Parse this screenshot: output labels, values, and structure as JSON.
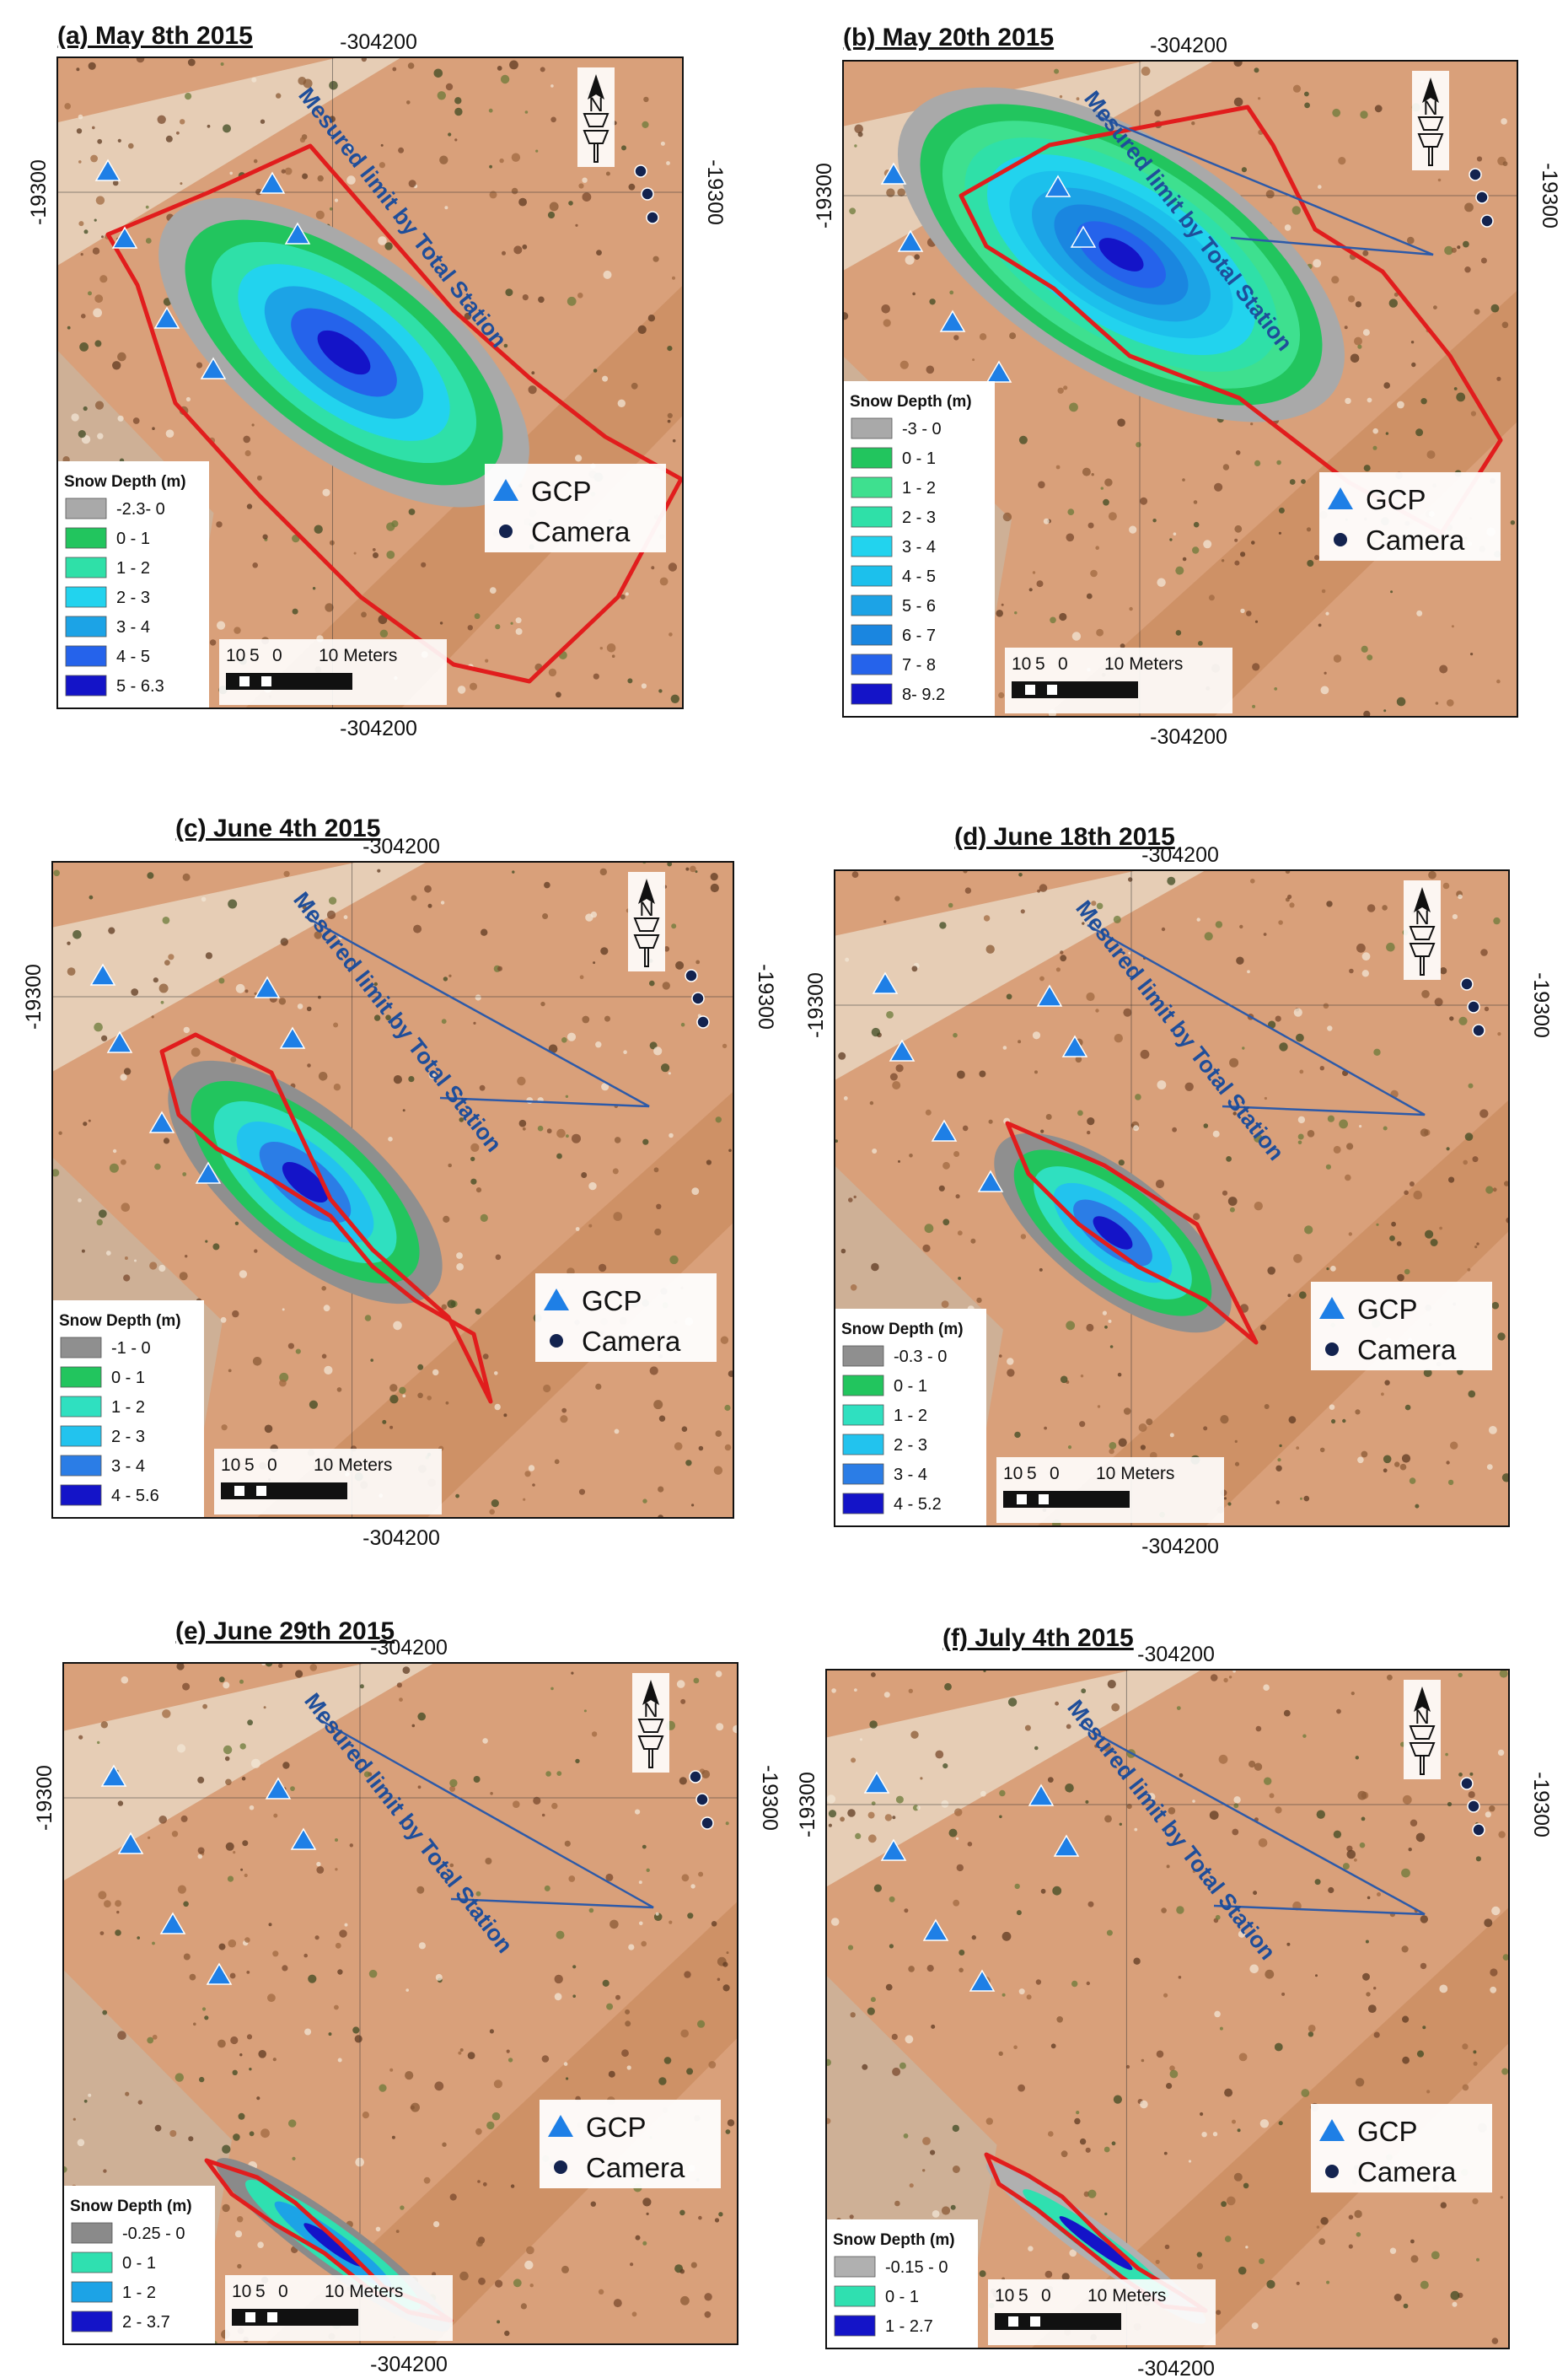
{
  "figure": {
    "north_label": "N",
    "limit_label": "Mesured limit by Total Station",
    "gcp_label": "GCP",
    "camera_label": "Camera",
    "legend_title": "Snow Depth (m)",
    "scale_labels": [
      "10",
      "5",
      "0",
      "10 Meters"
    ],
    "x_coord": "-304200",
    "y_coord": "-19300",
    "colors": {
      "gray": "#a9a9a9",
      "green": "#22c55e",
      "teal": "#2fe0a8",
      "cyan": "#22d3ee",
      "mid_blue": "#1ca3e6",
      "blue": "#2563eb",
      "navy": "#1d2fd8",
      "deep": "#1414c8",
      "outline": "#e11d1d",
      "text_blue": "#1f4e9a",
      "gcp": "#1e7fe6",
      "camera": "#13234f"
    }
  },
  "panels": [
    {
      "title": "(a) May 8th 2015",
      "legend": [
        {
          "label": "-2.3- 0",
          "color": "#a9a9a9"
        },
        {
          "label": "0 - 1",
          "color": "#22c55e"
        },
        {
          "label": "1 - 2",
          "color": "#2fe0a8"
        },
        {
          "label": "2 - 3",
          "color": "#22d3ee"
        },
        {
          "label": "3 - 4",
          "color": "#1ca3e6"
        },
        {
          "label": "4 - 5",
          "color": "#2563eb"
        },
        {
          "label": "5 - 6.3",
          "color": "#1414c8"
        }
      ]
    },
    {
      "title": "(b) May 20th 2015",
      "legend": [
        {
          "label": "-3 - 0",
          "color": "#a9a9a9"
        },
        {
          "label": "0 - 1",
          "color": "#22c55e"
        },
        {
          "label": "1 - 2",
          "color": "#3ee08f"
        },
        {
          "label": "2 - 3",
          "color": "#2fe0a8"
        },
        {
          "label": "3 - 4",
          "color": "#22d3ee"
        },
        {
          "label": "4 - 5",
          "color": "#1cc0ec"
        },
        {
          "label": "5 - 6",
          "color": "#1ca3e6"
        },
        {
          "label": "6 - 7",
          "color": "#1a86e0"
        },
        {
          "label": "7 - 8",
          "color": "#2563eb"
        },
        {
          "label": "8- 9.2",
          "color": "#1414c8"
        }
      ]
    },
    {
      "title": "(c) June 4th 2015",
      "legend": [
        {
          "label": "-1 - 0",
          "color": "#8f8f8f"
        },
        {
          "label": "0 - 1",
          "color": "#22c55e"
        },
        {
          "label": "1 - 2",
          "color": "#2fe0c0"
        },
        {
          "label": "2 - 3",
          "color": "#22c3ee"
        },
        {
          "label": "3 - 4",
          "color": "#2b7de6"
        },
        {
          "label": "4 - 5.6",
          "color": "#1414c8"
        }
      ]
    },
    {
      "title": "(d) June 18th 2015",
      "legend": [
        {
          "label": "-0.3 - 0",
          "color": "#8f8f8f"
        },
        {
          "label": "0 - 1",
          "color": "#22c55e"
        },
        {
          "label": "1 - 2",
          "color": "#2fe0c0"
        },
        {
          "label": "2 - 3",
          "color": "#22c3ee"
        },
        {
          "label": "3 - 4",
          "color": "#2b7de6"
        },
        {
          "label": "4 - 5.2",
          "color": "#1414c8"
        }
      ]
    },
    {
      "title": "(e) June 29th 2015",
      "legend": [
        {
          "label": "-0.25 - 0",
          "color": "#8a8a8a"
        },
        {
          "label": "0 - 1",
          "color": "#2fe0b0"
        },
        {
          "label": "1 - 2",
          "color": "#1ca3e6"
        },
        {
          "label": "2 - 3.7",
          "color": "#1414c8"
        }
      ]
    },
    {
      "title": "(f) July 4th 2015",
      "legend": [
        {
          "label": "-0.15 - 0",
          "color": "#b0b0b0"
        },
        {
          "label": "0 - 1",
          "color": "#2fe0b0"
        },
        {
          "label": "1 - 2.7",
          "color": "#1414c8"
        }
      ]
    }
  ]
}
